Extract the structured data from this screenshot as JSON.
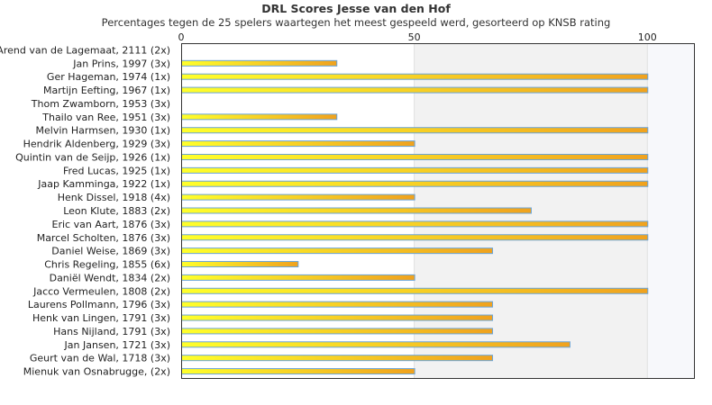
{
  "chart_data": {
    "type": "bar",
    "orientation": "horizontal",
    "title": "DRL Scores Jesse van den Hof",
    "subtitle": "Percentages tegen de 25 spelers waartegen het meest gespeeld werd, gesorteerd op KNSB rating",
    "xlim": [
      0,
      110
    ],
    "xticks": [
      "0",
      "50",
      "100"
    ],
    "tick_values": [
      0,
      50,
      100
    ],
    "bar_gradient": [
      "#ffff2a",
      "#f0a21e"
    ],
    "bar_border": "#6aa4d8",
    "categories": [
      "Arend van de Lagemaat, 2111 (2x)",
      "Jan Prins, 1997 (3x)",
      "Ger Hageman, 1974 (1x)",
      "Martijn Eefting, 1967 (1x)",
      "Thom Zwamborn, 1953 (3x)",
      "Thailo van Ree, 1951 (3x)",
      "Melvin Harmsen, 1930 (1x)",
      "Hendrik Aldenberg, 1929 (3x)",
      "Quintin van de Seijp, 1926 (1x)",
      "Fred Lucas, 1925 (1x)",
      "Jaap Kamminga, 1922 (1x)",
      "Henk Dissel, 1918 (4x)",
      "Leon Klute, 1883 (2x)",
      "Eric van Aart, 1876 (3x)",
      "Marcel Scholten, 1876 (3x)",
      "Daniel Weise, 1869 (3x)",
      "Chris Regeling, 1855 (6x)",
      "Daniël Wendt, 1834 (2x)",
      "Jacco Vermeulen, 1808 (2x)",
      "Laurens Pollmann, 1796 (3x)",
      "Henk van Lingen, 1791 (3x)",
      "Hans Nijland, 1791 (3x)",
      "Jan Jansen, 1721 (3x)",
      "Geurt van de Wal, 1718 (3x)",
      "Mienuk van Osnabrugge,  (2x)"
    ],
    "values": [
      0,
      33.3,
      100,
      100,
      0,
      33.3,
      100,
      50,
      100,
      100,
      100,
      50,
      75,
      100,
      100,
      66.7,
      25,
      50,
      100,
      66.7,
      66.7,
      66.7,
      83.3,
      66.7,
      50
    ]
  }
}
